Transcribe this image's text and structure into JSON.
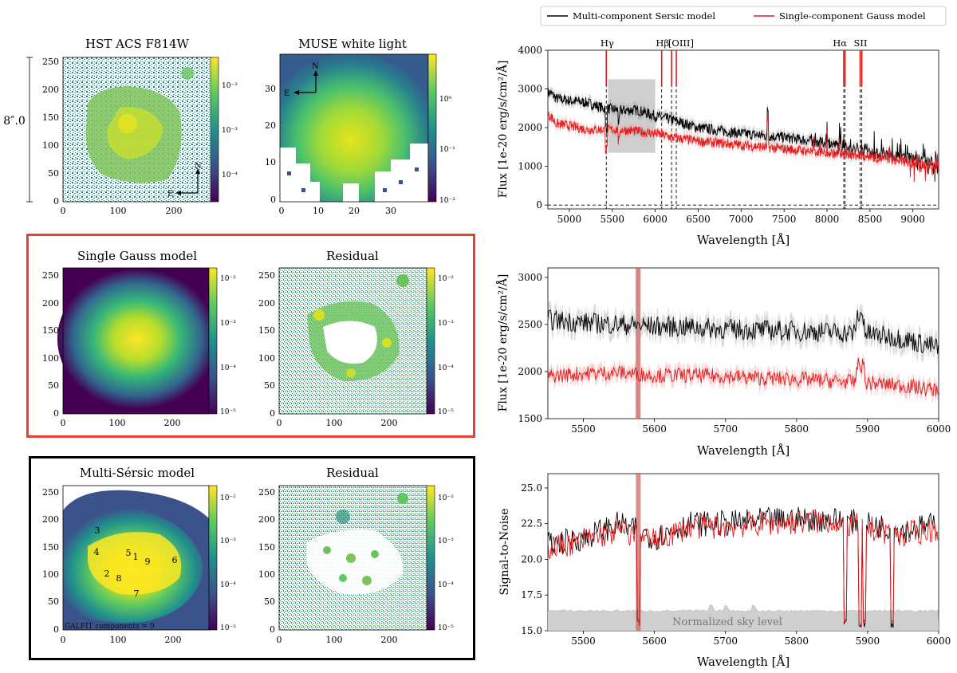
{
  "chart_data": [
    {
      "type": "heatmap",
      "title": "HST ACS F814W",
      "xticks": [
        "0",
        "100",
        "200"
      ],
      "yticks": [
        "0",
        "50",
        "100",
        "150",
        "200",
        "250"
      ],
      "colorbar_ticks": [
        "10⁻²",
        "10⁻³",
        "10⁻⁴"
      ],
      "compass": {
        "north": "N",
        "east": "E"
      },
      "scale_label": "8″.0"
    },
    {
      "type": "heatmap",
      "title": "MUSE white light",
      "xticks": [
        "0",
        "10",
        "20",
        "30"
      ],
      "yticks": [
        "0",
        "10",
        "20",
        "30"
      ],
      "colorbar_ticks": [
        "10⁰",
        "10⁻¹",
        "10⁻²"
      ],
      "compass": {
        "north": "N",
        "east": "E"
      }
    },
    {
      "type": "heatmap",
      "title": "Single Gauss model",
      "xticks": [
        "0",
        "100",
        "200"
      ],
      "yticks": [
        "0",
        "50",
        "100",
        "150",
        "200",
        "250"
      ],
      "colorbar_ticks": [
        "10⁻²",
        "10⁻³",
        "10⁻⁴",
        "10⁻⁵"
      ]
    },
    {
      "type": "heatmap",
      "title": "Residual",
      "xticks": [
        "0",
        "100",
        "200"
      ],
      "yticks": [
        "0",
        "50",
        "100",
        "150",
        "200",
        "250"
      ],
      "colorbar_ticks": [
        "10⁻²",
        "10⁻³",
        "10⁻⁴",
        "10⁻⁵"
      ]
    },
    {
      "type": "heatmap",
      "title": "Multi-Sérsic model",
      "xticks": [
        "0",
        "100",
        "200"
      ],
      "yticks": [
        "0",
        "50",
        "100",
        "150",
        "200",
        "250"
      ],
      "colorbar_ticks": [
        "10⁻²",
        "10⁻³",
        "10⁻⁴",
        "10⁻⁵"
      ],
      "components": [
        {
          "label": "1",
          "x": 145,
          "y": 125
        },
        {
          "label": "2",
          "x": 82,
          "y": 85
        },
        {
          "label": "3",
          "x": 70,
          "y": 180
        },
        {
          "label": "4",
          "x": 68,
          "y": 140
        },
        {
          "label": "5",
          "x": 130,
          "y": 140
        },
        {
          "label": "6",
          "x": 210,
          "y": 125
        },
        {
          "label": "7",
          "x": 130,
          "y": 48
        },
        {
          "label": "8",
          "x": 103,
          "y": 75
        },
        {
          "label": "9",
          "x": 165,
          "y": 120
        }
      ],
      "annotation": "GALFIT components = 9"
    },
    {
      "type": "heatmap",
      "title": "Residual",
      "xticks": [
        "0",
        "100",
        "200"
      ],
      "yticks": [
        "0",
        "50",
        "100",
        "150",
        "200",
        "250"
      ],
      "colorbar_ticks": [
        "10⁻²",
        "10⁻³",
        "10⁻⁴",
        "10⁻⁵"
      ]
    },
    {
      "type": "line",
      "legend": [
        "Multi-component Sersic model",
        "Single-component Gauss model"
      ],
      "xlabel": "Wavelength [Å]",
      "ylabel": "Flux [1e-20 erg/s/cm²/Å]",
      "xlim": [
        4750,
        9300
      ],
      "ylim": [
        -100,
        4000
      ],
      "xticks": [
        5000,
        5500,
        6000,
        6500,
        7000,
        7500,
        8000,
        8500,
        9000
      ],
      "yticks": [
        0,
        1000,
        2000,
        3000,
        4000
      ],
      "lines": [
        {
          "label": "Hγ",
          "wavelengths": [
            5430
          ]
        },
        {
          "label": "Hβ",
          "wavelengths": [
            6075
          ]
        },
        {
          "label": "[OIII]",
          "wavelengths": [
            6190,
            6245
          ]
        },
        {
          "label": "Hα",
          "wavelengths": [
            8195,
            8210
          ]
        },
        {
          "label": "SII",
          "wavelengths": [
            8385,
            8405
          ]
        }
      ],
      "shaded_region": {
        "x": [
          5450,
          6000
        ],
        "y": [
          1350,
          3250
        ]
      },
      "series": [
        {
          "name": "Multi-component Sersic model",
          "color": "#000000",
          "x": [
            4780,
            4850,
            5000,
            5200,
            5400,
            5600,
            5800,
            6000,
            6200,
            6500,
            7000,
            7500,
            8000,
            8500,
            9000,
            9300
          ],
          "values": [
            2900,
            2750,
            2700,
            2650,
            2500,
            2450,
            2450,
            2300,
            2200,
            2000,
            1850,
            1750,
            1600,
            1350,
            1200,
            1100
          ]
        },
        {
          "name": "Single-component Gauss model",
          "color": "#e31a1c",
          "x": [
            4780,
            4850,
            5000,
            5200,
            5400,
            5600,
            5800,
            6000,
            6200,
            6500,
            7000,
            7500,
            8000,
            8500,
            9000,
            9300
          ],
          "values": [
            2300,
            2100,
            2050,
            1950,
            1950,
            1950,
            1900,
            1850,
            1750,
            1650,
            1550,
            1450,
            1350,
            1250,
            1100,
            1000
          ]
        }
      ]
    },
    {
      "type": "line",
      "xlabel": "Wavelength [Å]",
      "ylabel": "Flux [1e-20 erg/s/cm²/Å]",
      "xlim": [
        5450,
        6000
      ],
      "ylim": [
        1500,
        3100
      ],
      "xticks": [
        5500,
        5600,
        5700,
        5800,
        5900,
        6000
      ],
      "yticks": [
        1500,
        2000,
        2500,
        3000
      ],
      "sky_line": 5577,
      "series": [
        {
          "name": "Multi-component Sersic model",
          "color": "#000000",
          "x": [
            5450,
            5500,
            5550,
            5600,
            5650,
            5700,
            5750,
            5800,
            5850,
            5900,
            5950,
            6000
          ],
          "values": [
            2550,
            2520,
            2500,
            2480,
            2470,
            2450,
            2440,
            2430,
            2420,
            2400,
            2350,
            2250
          ]
        },
        {
          "name": "Single-component Gauss model",
          "color": "#e31a1c",
          "x": [
            5450,
            5500,
            5550,
            5600,
            5650,
            5700,
            5750,
            5800,
            5850,
            5900,
            5950,
            6000
          ],
          "values": [
            1950,
            1980,
            1990,
            1960,
            1960,
            1950,
            1930,
            1920,
            1900,
            1880,
            1850,
            1800
          ]
        }
      ]
    },
    {
      "type": "line",
      "xlabel": "Wavelength [Å]",
      "ylabel": "Signal-to-Noise",
      "xlim": [
        5450,
        6000
      ],
      "ylim": [
        15,
        26
      ],
      "xticks": [
        5500,
        5600,
        5700,
        5800,
        5900,
        6000
      ],
      "yticks": [
        15.0,
        17.5,
        20.0,
        22.5,
        25.0
      ],
      "ytick_labels": [
        "15.0",
        "17.5",
        "20.0",
        "22.5",
        "25.0"
      ],
      "sky_annotation": "Normalized sky level",
      "sky_level": 16.4,
      "series": [
        {
          "name": "Multi-component Sersic model",
          "color": "#000000",
          "x": [
            5450,
            5500,
            5550,
            5600,
            5650,
            5700,
            5750,
            5800,
            5850,
            5900,
            5950,
            6000
          ],
          "values": [
            21.0,
            21.5,
            22.5,
            21.5,
            22.5,
            22.5,
            22.7,
            22.8,
            22.8,
            22.5,
            22.0,
            22.5
          ]
        },
        {
          "name": "Single-component Gauss model",
          "color": "#e31a1c",
          "x": [
            5450,
            5500,
            5550,
            5600,
            5650,
            5700,
            5750,
            5800,
            5850,
            5900,
            5950,
            6000
          ],
          "values": [
            20.8,
            21.3,
            22.0,
            21.3,
            22.3,
            22.3,
            22.5,
            22.6,
            22.7,
            22.2,
            21.7,
            22.2
          ]
        }
      ],
      "dips": [
        5577,
        5868,
        5890,
        5896,
        5935
      ]
    }
  ],
  "colors": {
    "viridis": [
      "#440154",
      "#3b528b",
      "#21918c",
      "#5ec962",
      "#fde725"
    ],
    "gauss_frame": "#e8402f",
    "sersic_frame": "#000000",
    "sersic_line": "#000000",
    "gauss_line": "#e31a1c",
    "sky": "#cccccc"
  }
}
